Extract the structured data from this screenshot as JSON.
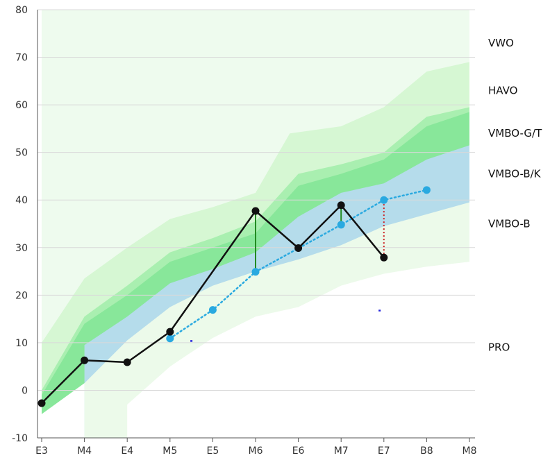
{
  "chart_data": {
    "type": "line",
    "categories": [
      "E3",
      "M4",
      "E4",
      "M5",
      "E5",
      "M6",
      "E6",
      "M7",
      "E7",
      "B8",
      "M8"
    ],
    "ylim": [
      -10,
      80
    ],
    "yticks": [
      -10,
      0,
      10,
      20,
      30,
      40,
      50,
      60,
      70,
      80
    ],
    "grid": true,
    "colors": {
      "vwo": "#eefbee",
      "havo": "#d6f7d3",
      "vmbo_gt": "#a9efb0",
      "vmbo_gt_core": "#88e79a",
      "vmbo_bk": "#b5dceb",
      "vmbo_b": "#ecfaea",
      "pro": "#ffffff",
      "student": "#111111",
      "norm": "#29a9e0",
      "above": "#228b22",
      "below": "#cc2222",
      "marker": "#2222dd",
      "grid": "#d9d9d9",
      "axis": "#555555"
    },
    "bands": [
      {
        "label": "VWO",
        "label_y": 73
      },
      {
        "label": "HAVO",
        "label_y": 63
      },
      {
        "label": "VMBO-G/T",
        "label_y": 54
      },
      {
        "label": "VMBO-B/K",
        "label_y": 45.5
      },
      {
        "label": "VMBO-B",
        "label_y": 35
      },
      {
        "label": "PRO",
        "label_y": 9
      }
    ],
    "boundaries": {
      "vwo_top": [
        [
          0,
          80
        ],
        [
          1,
          80
        ],
        [
          2,
          80
        ],
        [
          3,
          80
        ],
        [
          4,
          80
        ],
        [
          5,
          80
        ],
        [
          6,
          80
        ],
        [
          7,
          80
        ],
        [
          8,
          80
        ],
        [
          9,
          80
        ],
        [
          10,
          80
        ]
      ],
      "havo_top": [
        [
          0,
          10
        ],
        [
          1,
          23.5
        ],
        [
          2,
          30
        ],
        [
          3,
          36
        ],
        [
          4,
          38.5
        ],
        [
          5,
          41.5
        ],
        [
          5.8,
          54
        ],
        [
          7,
          55.5
        ],
        [
          8,
          59.5
        ],
        [
          9,
          67
        ],
        [
          10,
          69
        ]
      ],
      "gt_top": [
        [
          0,
          0
        ],
        [
          1,
          15.5
        ],
        [
          2,
          22
        ],
        [
          3,
          29
        ],
        [
          4,
          32
        ],
        [
          5,
          35.5
        ],
        [
          6,
          45.5
        ],
        [
          7,
          47.5
        ],
        [
          8,
          50
        ],
        [
          9,
          57.5
        ],
        [
          10,
          59.5
        ]
      ],
      "gt_core_top": [
        [
          0,
          -1
        ],
        [
          1,
          14
        ],
        [
          2,
          20
        ],
        [
          3,
          27
        ],
        [
          4,
          30
        ],
        [
          5,
          33
        ],
        [
          6,
          43
        ],
        [
          7,
          45.5
        ],
        [
          8,
          48.5
        ],
        [
          9,
          55.5
        ],
        [
          10,
          58.5
        ]
      ],
      "bk_top": [
        [
          1,
          9.5
        ],
        [
          2,
          15.5
        ],
        [
          3,
          22.5
        ],
        [
          4,
          25.5
        ],
        [
          5,
          29
        ],
        [
          6,
          36.5
        ],
        [
          7,
          41.5
        ],
        [
          8,
          43.5
        ],
        [
          9,
          48.5
        ],
        [
          10,
          51.5
        ]
      ],
      "b_top": [
        [
          1,
          1.5
        ],
        [
          2,
          10.5
        ],
        [
          3,
          17.5
        ],
        [
          4,
          22
        ],
        [
          5,
          25
        ],
        [
          6,
          27.5
        ],
        [
          7,
          30.5
        ],
        [
          8,
          34.5
        ],
        [
          9,
          37
        ],
        [
          10,
          39.5
        ]
      ],
      "pro_top": [
        [
          2,
          -3
        ],
        [
          3,
          5
        ],
        [
          4,
          11
        ],
        [
          5,
          15.5
        ],
        [
          6,
          17.5
        ],
        [
          7,
          22
        ],
        [
          8,
          24.5
        ],
        [
          9,
          26
        ],
        [
          10,
          27
        ]
      ]
    },
    "series": [
      {
        "x": [
          0,
          1,
          2,
          3,
          5,
          6,
          7,
          8
        ],
        "values": [
          -2.7,
          6.3,
          5.9,
          12.3,
          37.7,
          29.9,
          38.9,
          27.9
        ]
      },
      {
        "x": [
          3,
          4,
          5,
          7,
          8,
          9
        ],
        "values": [
          10.9,
          16.9,
          24.9,
          34.8,
          40.0,
          42.1
        ]
      }
    ],
    "connectors": [
      {
        "x": 5,
        "from": 24.9,
        "to": 37.7,
        "kind": "above"
      },
      {
        "x": 7,
        "from": 34.8,
        "to": 38.9,
        "kind": "above"
      },
      {
        "x": 8,
        "from": 27.9,
        "to": 40.0,
        "kind": "below"
      }
    ],
    "markers": [
      {
        "x": 3.5,
        "y": 10.4
      },
      {
        "x": 7.9,
        "y": 16.8
      }
    ]
  }
}
